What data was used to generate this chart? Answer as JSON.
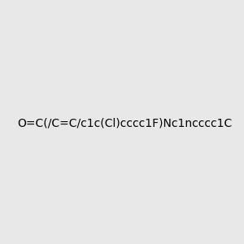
{
  "smiles": "O=C(/C=C/c1c(Cl)cccc1F)Nc1ncccc1C",
  "image_size": 300,
  "background_color": "#e8e8e8",
  "title": ""
}
